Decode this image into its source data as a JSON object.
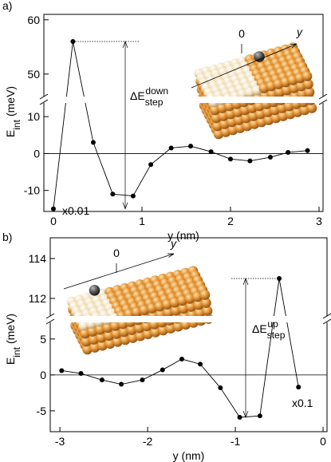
{
  "chart_data": [
    {
      "type": "line",
      "panel_label": "a)",
      "x_label": "y (nm)",
      "y_label": {
        "main": "E",
        "sub": "int",
        "unit": "(meV)"
      },
      "x": [
        0,
        0.22,
        0.45,
        0.67,
        0.9,
        1.1,
        1.33,
        1.55,
        1.78,
        2.0,
        2.22,
        2.45,
        2.65,
        2.87
      ],
      "series": [
        {
          "color": "#000000",
          "values": [
            -15,
            56,
            3,
            -11,
            -11.5,
            -3,
            1.5,
            2,
            0.5,
            -1.5,
            -2,
            -1,
            0.3,
            0.8
          ]
        }
      ],
      "xlim": [
        -0.108,
        3.045
      ],
      "xticks": [
        0,
        1,
        2,
        3
      ],
      "y_segments": [
        {
          "ylim": [
            -15.7,
            13.5
          ],
          "yticks": [
            -10,
            0,
            10
          ]
        },
        {
          "ylim": [
            46,
            61
          ],
          "yticks": [
            50,
            60
          ]
        }
      ],
      "annotations": {
        "scale": "x0.01",
        "delta": {
          "main": "ΔE",
          "sub": "step",
          "sup": "down"
        }
      },
      "inset": {
        "origin": "0",
        "axis": "y"
      }
    },
    {
      "type": "line",
      "panel_label": "b)",
      "x_label": "y (nm)",
      "y_label": {
        "main": "E",
        "sub": "int",
        "unit": "(meV)"
      },
      "x": [
        -2.98,
        -2.76,
        -2.52,
        -2.3,
        -2.06,
        -1.83,
        -1.61,
        -1.4,
        -1.17,
        -0.95,
        -0.72,
        -0.5,
        -0.28
      ],
      "series": [
        {
          "color": "#000000",
          "values": [
            0.6,
            0.2,
            -0.7,
            -1.3,
            -0.7,
            0.7,
            2.2,
            1.5,
            -1.8,
            -5.9,
            -5.7,
            113,
            -1.7
          ]
        }
      ],
      "xlim": [
        -3.11,
        0.045
      ],
      "xticks": [
        -3,
        -2,
        -1,
        0
      ],
      "y_segments": [
        {
          "ylim": [
            -7.9,
            7.2
          ],
          "yticks": [
            -5,
            0,
            5
          ]
        },
        {
          "ylim": [
            111.16,
            115.04
          ],
          "yticks": [
            112,
            114
          ]
        }
      ],
      "annotations": {
        "scale": "x0.1",
        "delta": {
          "main": "ΔE",
          "sub": "step",
          "sup": "up"
        }
      },
      "inset": {
        "origin": "0",
        "axis": "y"
      }
    }
  ]
}
